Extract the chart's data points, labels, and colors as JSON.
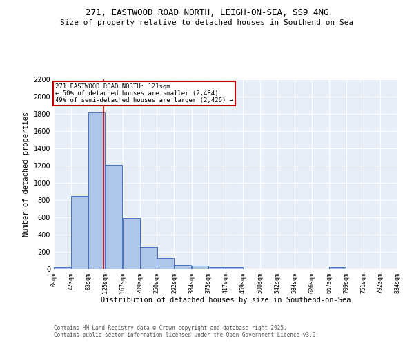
{
  "title": "271, EASTWOOD ROAD NORTH, LEIGH-ON-SEA, SS9 4NG",
  "subtitle": "Size of property relative to detached houses in Southend-on-Sea",
  "xlabel": "Distribution of detached houses by size in Southend-on-Sea",
  "ylabel": "Number of detached properties",
  "annotation_line1": "271 EASTWOOD ROAD NORTH: 121sqm",
  "annotation_line2": "← 50% of detached houses are smaller (2,484)",
  "annotation_line3": "49% of semi-detached houses are larger (2,426) →",
  "property_size": 121,
  "bar_left_edges": [
    0,
    42,
    83,
    125,
    167,
    209,
    250,
    292,
    334,
    375,
    417,
    459,
    500,
    542,
    584,
    626,
    667,
    709,
    751,
    792
  ],
  "bar_width": 41.5,
  "bar_heights": [
    25,
    845,
    1820,
    1205,
    595,
    260,
    130,
    48,
    38,
    28,
    22,
    0,
    0,
    0,
    0,
    0,
    22,
    0,
    0,
    0
  ],
  "bin_labels": [
    "0sqm",
    "42sqm",
    "83sqm",
    "125sqm",
    "167sqm",
    "209sqm",
    "250sqm",
    "292sqm",
    "334sqm",
    "375sqm",
    "417sqm",
    "459sqm",
    "500sqm",
    "542sqm",
    "584sqm",
    "626sqm",
    "667sqm",
    "709sqm",
    "751sqm",
    "792sqm",
    "834sqm"
  ],
  "bar_color": "#aec6e8",
  "bar_edge_color": "#4472c4",
  "vline_x": 121,
  "vline_color": "#c00000",
  "annotation_box_color": "#c00000",
  "background_color": "#e8eef8",
  "ylim": [
    0,
    2200
  ],
  "yticks": [
    0,
    200,
    400,
    600,
    800,
    1000,
    1200,
    1400,
    1600,
    1800,
    2000,
    2200
  ],
  "footer_line1": "Contains HM Land Registry data © Crown copyright and database right 2025.",
  "footer_line2": "Contains public sector information licensed under the Open Government Licence v3.0."
}
